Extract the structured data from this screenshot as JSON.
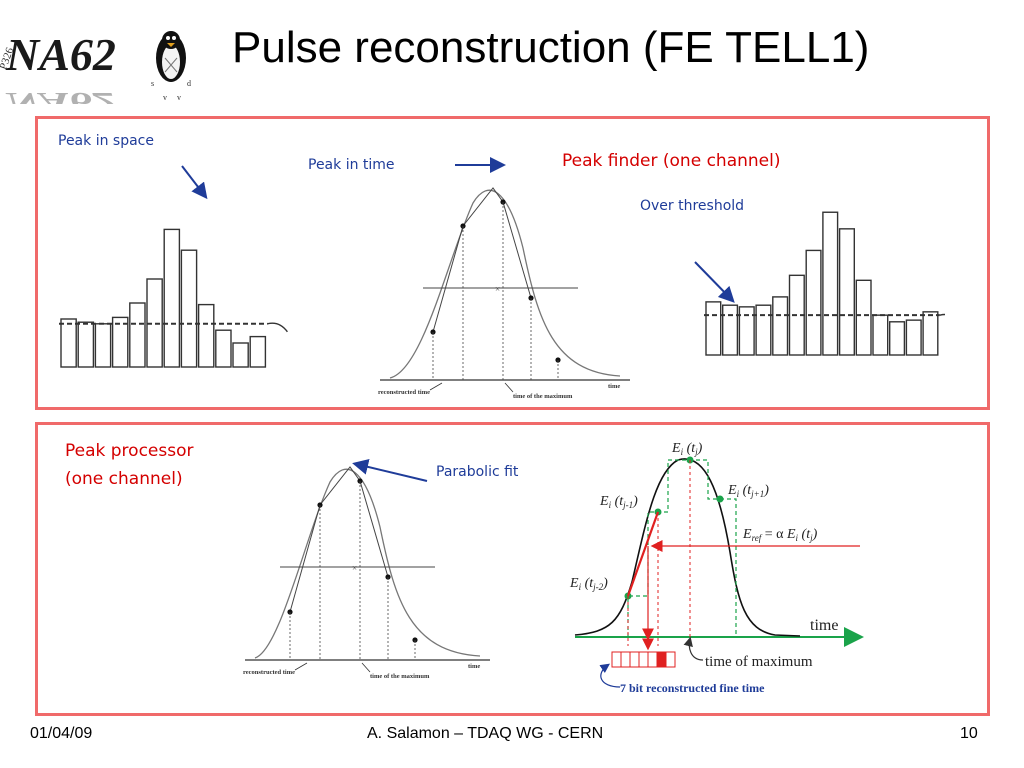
{
  "header": {
    "logo_text": "NA62",
    "logo_stamp": "P326",
    "title": "Pulse reconstruction (FE TELL1)"
  },
  "panel_finder": {
    "label_space": "Peak in space",
    "label_time": "Peak in time",
    "heading": "Peak finder (one channel)",
    "label_threshold": "Over threshold",
    "histogram_left_values": [
      0.3,
      0.28,
      0.27,
      0.31,
      0.4,
      0.55,
      0.86,
      0.73,
      0.39,
      0.23,
      0.15,
      0.19
    ],
    "histogram_right_values": [
      0.32,
      0.3,
      0.29,
      0.3,
      0.35,
      0.48,
      0.63,
      0.86,
      0.76,
      0.45,
      0.24,
      0.2,
      0.21,
      0.26
    ],
    "pulse_x_labels": [
      "reconstructed time",
      "time of the maximum",
      "time"
    ]
  },
  "panel_processor": {
    "heading_line1": "Peak processor",
    "heading_line2": "(one channel)",
    "label_fit": "Parabolic fit",
    "pulse_x_labels": [
      "reconstructed time",
      "time of the maximum",
      "time"
    ],
    "diagram": {
      "label_ej": "E",
      "label_ej_sub": "i",
      "label_ej_arg": "(t",
      "label_ej_argsub": "j",
      "label_ejm1_argsub": "j-1",
      "label_ejp1_argsub": "j+1",
      "label_ejm2_argsub": "j-2",
      "label_eref": "E",
      "label_eref_sub": "ref",
      "label_eref_eq": "= α",
      "axis_time": "time",
      "time_of_max": "time of maximum",
      "fine_time": "7 bit reconstructed fine time",
      "fine_time_bits": 7,
      "fine_time_highlighted_bit": 5
    }
  },
  "footer": {
    "date": "01/04/09",
    "author": "A. Salamon – TDAQ WG - CERN",
    "page": "10"
  },
  "colors": {
    "panel_border": "#f06a6a",
    "blue_text": "#1f3c99",
    "red_text": "#d40000",
    "green_dots": "#1aa34a"
  }
}
